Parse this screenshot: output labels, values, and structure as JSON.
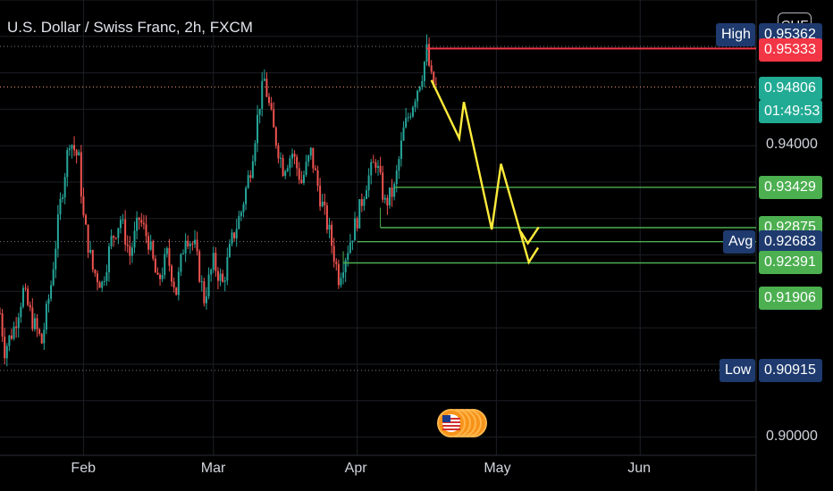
{
  "header": {
    "title": "U.S. Dollar / Swiss Franc, 2h, FXCM",
    "currency_button": "CHF"
  },
  "colors": {
    "background": "#000000",
    "grid": "#1c1f26",
    "candle_up": "#26a69a",
    "candle_down": "#ef5350",
    "level_line": "#4caf50",
    "level_label": "#4caf50",
    "high_low_label": "#1e3a6e",
    "current_red": "#f23645",
    "current_green": "#22ab94",
    "arrow": "#ffeb3b"
  },
  "chart_data": {
    "type": "candlestick",
    "title": "U.S. Dollar / Swiss Franc, 2h, FXCM",
    "ylim": [
      0.8975,
      0.96
    ],
    "y_ticks": [
      {
        "value": 0.9,
        "label": "0.90000"
      },
      {
        "value": 0.94,
        "label": "0.94000"
      }
    ],
    "x_ticks": [
      {
        "label": "Feb",
        "day": 31
      },
      {
        "label": "Mar",
        "day": 59
      },
      {
        "label": "Apr",
        "day": 90
      },
      {
        "label": "May",
        "day": 120
      },
      {
        "label": "Jun",
        "day": 151
      }
    ],
    "xlim_days": [
      13,
      176
    ],
    "close_path": [
      [
        13,
        0.917
      ],
      [
        14,
        0.912
      ],
      [
        16,
        0.915
      ],
      [
        18,
        0.92
      ],
      [
        20,
        0.916
      ],
      [
        22,
        0.913
      ],
      [
        24,
        0.921
      ],
      [
        26,
        0.932
      ],
      [
        28,
        0.941
      ],
      [
        30,
        0.938
      ],
      [
        31,
        0.93
      ],
      [
        33,
        0.923
      ],
      [
        35,
        0.921
      ],
      [
        37,
        0.927
      ],
      [
        39,
        0.93
      ],
      [
        41,
        0.925
      ],
      [
        43,
        0.93
      ],
      [
        45,
        0.927
      ],
      [
        47,
        0.921
      ],
      [
        49,
        0.925
      ],
      [
        51,
        0.92
      ],
      [
        53,
        0.928
      ],
      [
        55,
        0.926
      ],
      [
        57,
        0.919
      ],
      [
        59,
        0.924
      ],
      [
        61,
        0.921
      ],
      [
        63,
        0.927
      ],
      [
        65,
        0.931
      ],
      [
        67,
        0.937
      ],
      [
        69,
        0.946
      ],
      [
        70,
        0.949
      ],
      [
        72,
        0.942
      ],
      [
        74,
        0.937
      ],
      [
        76,
        0.939
      ],
      [
        78,
        0.935
      ],
      [
        80,
        0.939
      ],
      [
        82,
        0.933
      ],
      [
        84,
        0.928
      ],
      [
        86,
        0.922
      ],
      [
        88,
        0.926
      ],
      [
        90,
        0.93
      ],
      [
        92,
        0.935
      ],
      [
        94,
        0.938
      ],
      [
        96,
        0.932
      ],
      [
        98,
        0.934
      ],
      [
        100,
        0.942
      ],
      [
        102,
        0.946
      ],
      [
        104,
        0.95
      ],
      [
        105,
        0.953
      ],
      [
        106,
        0.949
      ],
      [
        107,
        0.9481
      ]
    ],
    "levels": [
      {
        "name": "High",
        "value": 0.95362,
        "label": "0.95362"
      },
      {
        "name": "Low",
        "value": 0.90915,
        "label": "0.90915"
      },
      {
        "name": "Avg",
        "value": 0.92683,
        "label": "0.92683"
      }
    ],
    "current_price": {
      "value": 0.94806,
      "label": "0.94806",
      "countdown": "01:49:53"
    },
    "red_level": {
      "value": 0.95333,
      "label": "0.95333"
    },
    "support_levels": [
      {
        "value": 0.93429,
        "label": "0.93429",
        "from_day": 98
      },
      {
        "value": 0.92875,
        "label": "0.92875",
        "from_day": 95
      },
      {
        "value": 0.92391,
        "label": "0.92391",
        "from_day": 87
      },
      {
        "value": 0.91906,
        "label": "0.91906",
        "from_day": 87
      }
    ],
    "projection_arrow": [
      [
        106,
        0.949
      ],
      [
        112,
        0.941
      ],
      [
        113,
        0.946
      ],
      [
        119,
        0.9285
      ],
      [
        121,
        0.9375
      ],
      [
        127,
        0.924
      ],
      [
        129,
        0.926
      ]
    ]
  }
}
